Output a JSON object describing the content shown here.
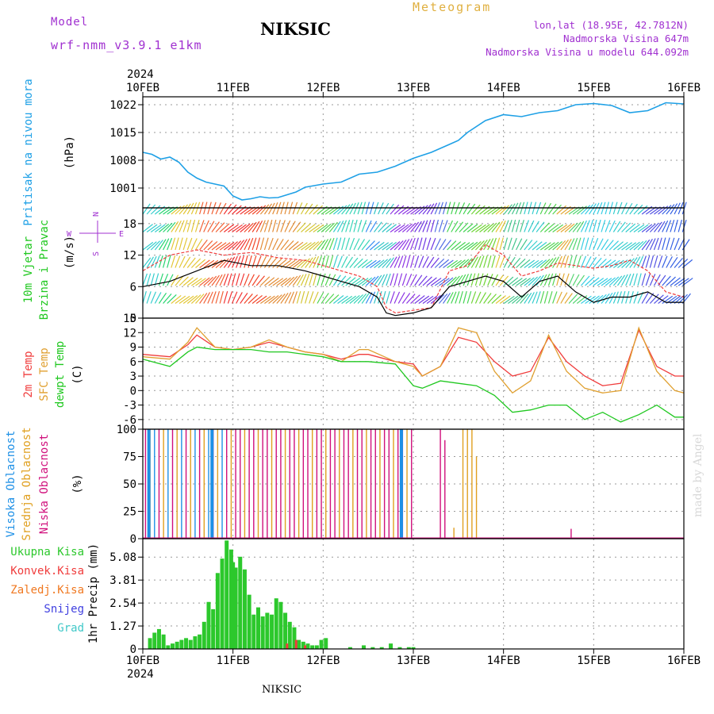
{
  "header": {
    "model_label": "Model",
    "model_name": "wrf-nmm_v3.9.1  e1km",
    "station": "NIKSIC",
    "meteogram": "Meteogram",
    "lonlat": "lon,lat (18.95E, 42.7812N)",
    "elevation": "Nadmorska Visina 647m",
    "model_elevation": "Nadmorska Visina u modelu 644.092m",
    "year_top": "2024",
    "year_bottom": "2024",
    "footer_station": "NIKSIC",
    "watermark": "made by Angel"
  },
  "colors": {
    "pressure": "#1ea0e6",
    "temp2m": "#f03c3c",
    "sfc": "#e0a030",
    "dewpt": "#20c820",
    "gust": "#f03c3c",
    "wind": "#000000",
    "high_cloud": "#1e90e6",
    "mid_cloud": "#e0a020",
    "low_cloud": "#d0107c",
    "precip_total": "#2cc82c",
    "precip_conv": "#f03c3c",
    "precip_frozen": "#f07820",
    "precip_snow": "#4040e0",
    "precip_hail": "#40c8c8"
  },
  "chart_data": [
    {
      "type": "line",
      "panel": "pressure",
      "x_categories": [
        "10FEB",
        "11FEB",
        "12FEB",
        "13FEB",
        "14FEB",
        "15FEB",
        "16FEB"
      ],
      "ylabel_1": "Pritisak na nivou mora",
      "ylabel_2": "(hPa)",
      "yticks": [
        "1022",
        "1015",
        "1008",
        "1001"
      ],
      "ylim": [
        996,
        1024
      ],
      "series": [
        {
          "x": [
            0,
            0.1,
            0.2,
            0.3,
            0.4,
            0.5,
            0.6,
            0.7,
            0.8,
            0.9,
            1.0,
            1.1,
            1.2,
            1.3,
            1.4,
            1.5,
            1.6,
            1.7,
            1.8,
            1.9,
            2.0,
            2.2,
            2.4,
            2.6,
            2.8,
            3.0,
            3.2,
            3.4,
            3.5,
            3.6,
            3.8,
            4.0,
            4.2,
            4.4,
            4.6,
            4.8,
            5.0,
            5.2,
            5.4,
            5.6,
            5.8,
            6.0
          ],
          "y": [
            1010,
            1009.5,
            1008.3,
            1008.8,
            1007.5,
            1005,
            1003.5,
            1002.5,
            1002,
            1001.5,
            999,
            998,
            998.3,
            998.8,
            998.5,
            998.6,
            999.3,
            1000,
            1001.2,
            1001.6,
            1002,
            1002.5,
            1004.5,
            1005,
            1006.5,
            1008.5,
            1010,
            1012,
            1013,
            1015,
            1018,
            1019.5,
            1019,
            1020,
            1020.5,
            1022,
            1022.3,
            1021.8,
            1020,
            1020.5,
            1022.5,
            1022.2
          ]
        }
      ]
    },
    {
      "type": "line",
      "panel": "wind",
      "ylabel_1": "10m Vjetar",
      "ylabel_2": "Brzina i Pravac",
      "ylabel_3": "(m/s)",
      "compass_n": "N",
      "compass_s": "S",
      "compass_w": "W",
      "compass_e": "E",
      "yticks": [
        "18",
        "12",
        "6",
        "0"
      ],
      "ylim": [
        0,
        21
      ],
      "series": [
        {
          "name": "gust",
          "x": [
            0,
            0.3,
            0.6,
            0.9,
            1.2,
            1.5,
            1.8,
            2.0,
            2.2,
            2.4,
            2.6,
            2.7,
            2.8,
            3.0,
            3.2,
            3.4,
            3.6,
            3.8,
            4.0,
            4.2,
            4.4,
            4.6,
            4.8,
            5.0,
            5.2,
            5.4,
            5.6,
            5.8,
            6.0
          ],
          "y": [
            9,
            12,
            13,
            12,
            12.5,
            11.5,
            11,
            10,
            9,
            8,
            6,
            2,
            1,
            1.5,
            2,
            9,
            10,
            14,
            12,
            8,
            9,
            10.5,
            10,
            9.5,
            10,
            11,
            9,
            5,
            4
          ]
        },
        {
          "name": "wind",
          "x": [
            0,
            0.3,
            0.6,
            0.9,
            1.2,
            1.5,
            1.8,
            2.0,
            2.2,
            2.4,
            2.6,
            2.7,
            2.8,
            3.0,
            3.2,
            3.4,
            3.6,
            3.8,
            4.0,
            4.2,
            4.4,
            4.6,
            4.8,
            5.0,
            5.2,
            5.4,
            5.6,
            5.8,
            6.0
          ],
          "y": [
            6,
            7,
            9,
            11,
            10,
            10,
            9,
            8,
            7,
            6,
            4,
            1,
            0.5,
            1,
            2,
            6,
            7,
            8,
            7,
            4,
            7,
            8,
            5,
            3,
            4,
            4,
            5,
            3,
            3
          ]
        }
      ]
    },
    {
      "type": "line",
      "panel": "temperature",
      "ylabel_1": "2m Temp",
      "ylabel_2": "SFC Temp",
      "ylabel_3": "dewpt Temp",
      "ylabel_4": "(C)",
      "yticks": [
        "15",
        "12",
        "9",
        "6",
        "3",
        "0",
        "-3",
        "-6"
      ],
      "ylim": [
        -8,
        15
      ],
      "series": [
        {
          "name": "2m Temp",
          "x": [
            0,
            0.3,
            0.5,
            0.6,
            0.8,
            1.0,
            1.2,
            1.4,
            1.6,
            1.8,
            2.0,
            2.2,
            2.4,
            2.5,
            2.8,
            3.0,
            3.1,
            3.3,
            3.5,
            3.7,
            3.9,
            4.1,
            4.3,
            4.5,
            4.7,
            4.9,
            5.1,
            5.3,
            5.5,
            5.7,
            5.9,
            6.0
          ],
          "y": [
            7.5,
            7,
            9.5,
            11.5,
            9,
            8.5,
            9,
            10,
            9,
            8,
            7.5,
            6.5,
            7.5,
            7.5,
            6,
            5.5,
            3,
            5,
            11,
            10,
            6,
            3,
            4,
            11,
            6,
            3,
            1,
            1.5,
            12.5,
            5,
            3,
            3
          ]
        },
        {
          "name": "SFC Temp",
          "x": [
            0,
            0.3,
            0.5,
            0.6,
            0.8,
            1.0,
            1.2,
            1.4,
            1.6,
            1.8,
            2.0,
            2.2,
            2.4,
            2.5,
            2.8,
            3.0,
            3.1,
            3.3,
            3.5,
            3.7,
            3.9,
            4.1,
            4.3,
            4.5,
            4.7,
            4.9,
            5.1,
            5.3,
            5.5,
            5.7,
            5.9,
            6.0
          ],
          "y": [
            7,
            6.5,
            10,
            13,
            9,
            8.5,
            9,
            10.5,
            9,
            8,
            7.5,
            6,
            8.5,
            8.5,
            6,
            5,
            3,
            5,
            13,
            12,
            4,
            -0.5,
            2,
            11.5,
            4,
            0.5,
            -0.5,
            0,
            13,
            4,
            0,
            -0.5
          ]
        },
        {
          "name": "dewpt Temp",
          "x": [
            0,
            0.3,
            0.5,
            0.6,
            0.8,
            1.0,
            1.2,
            1.4,
            1.6,
            1.8,
            2.0,
            2.2,
            2.4,
            2.5,
            2.8,
            3.0,
            3.1,
            3.3,
            3.5,
            3.7,
            3.9,
            4.1,
            4.3,
            4.5,
            4.7,
            4.9,
            5.1,
            5.3,
            5.5,
            5.7,
            5.9,
            6.0
          ],
          "y": [
            6.5,
            5,
            8,
            9,
            8.5,
            8.5,
            8.5,
            8,
            8,
            7.5,
            7,
            6,
            6,
            6,
            5.5,
            1,
            0.5,
            2,
            1.5,
            1,
            -1,
            -4.5,
            -4,
            -3,
            -3,
            -6,
            -4.5,
            -6.5,
            -5,
            -3,
            -5.5,
            -5.5
          ]
        }
      ]
    },
    {
      "type": "bar",
      "panel": "clouds",
      "ylabel_1": "Visoka Oblacnost",
      "ylabel_2": "Srednja Oblacnost",
      "ylabel_3": "Niska Oblacnost",
      "ylabel_4": "(%)",
      "yticks": [
        "100",
        "75",
        "50",
        "25",
        "0"
      ],
      "ylim": [
        0,
        100
      ]
    },
    {
      "type": "bar",
      "panel": "precipitation",
      "legend": [
        "Ukupna Kisa",
        "Konvek.Kisa",
        "Zaledj.Kisa",
        "Snijeg",
        "Grad"
      ],
      "ylabel_1": "1hr Precip (mm)",
      "yticks": [
        "5.08",
        "3.81",
        "2.54",
        "1.27",
        "0"
      ],
      "ylim": [
        0,
        6.1
      ],
      "x": [
        0.08,
        0.13,
        0.18,
        0.23,
        0.28,
        0.33,
        0.38,
        0.43,
        0.48,
        0.53,
        0.58,
        0.63,
        0.68,
        0.73,
        0.78,
        0.83,
        0.88,
        0.93,
        0.98,
        1.0,
        1.03,
        1.08,
        1.13,
        1.18,
        1.23,
        1.28,
        1.33,
        1.38,
        1.43,
        1.48,
        1.53,
        1.58,
        1.63,
        1.68,
        1.73,
        1.78,
        1.83,
        1.88,
        1.93,
        1.98,
        2.03,
        2.3,
        2.45,
        2.55,
        2.65,
        2.75,
        2.85,
        2.95,
        3.0
      ],
      "values": [
        0.6,
        0.9,
        1.1,
        0.8,
        0.2,
        0.3,
        0.4,
        0.5,
        0.6,
        0.5,
        0.7,
        0.8,
        1.5,
        2.6,
        2.2,
        4.2,
        5.0,
        6.0,
        5.5,
        4.8,
        4.5,
        5.1,
        4.4,
        3.0,
        1.9,
        2.3,
        1.8,
        2.0,
        1.9,
        2.8,
        2.6,
        2.0,
        1.5,
        1.2,
        0.5,
        0.4,
        0.3,
        0.2,
        0.2,
        0.5,
        0.6,
        0.1,
        0.2,
        0.1,
        0.1,
        0.3,
        0.1,
        0.1,
        0.1
      ],
      "conv_x": [
        1.6,
        1.7,
        1.8
      ],
      "conv_values": [
        0.3,
        0.5,
        0.2
      ]
    }
  ]
}
